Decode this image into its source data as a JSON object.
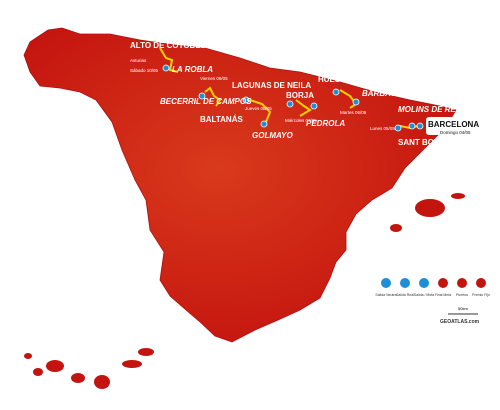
{
  "stages": [
    {
      "place": "ALTO DE COTOBELLO.",
      "region": "Asturias",
      "date": "Sábado 10/05"
    },
    {
      "place": "LA ROBLA"
    },
    {
      "place": "BECERRIL DE CAMPOS",
      "date": "Viernes 09/05"
    },
    {
      "place": "BALTANÁS"
    },
    {
      "place": "LAGUNAS DE NEILA",
      "date": "Jueves 08/05"
    },
    {
      "place": "GOLMAYO"
    },
    {
      "place": "BORJA",
      "date": "Miércoles 07/05"
    },
    {
      "place": "PEDROLA"
    },
    {
      "place": "HUESCA",
      "date": "Martes 06/05"
    },
    {
      "place": "BARBASTRO"
    },
    {
      "place": "MOLINS DE REI",
      "date": "Lunes 05/05"
    },
    {
      "place": "BARCELONA",
      "date": "Domingo 04/05"
    },
    {
      "place": "SANT BOI DE LLOBREGAT"
    }
  ],
  "legend": [
    "Salida Neutra",
    "Salida Real",
    "Salida / Meta",
    "Final Meta",
    "Puertos",
    "Premio Fijo"
  ],
  "scale": "50km",
  "credit": "GEOATLAS.com"
}
